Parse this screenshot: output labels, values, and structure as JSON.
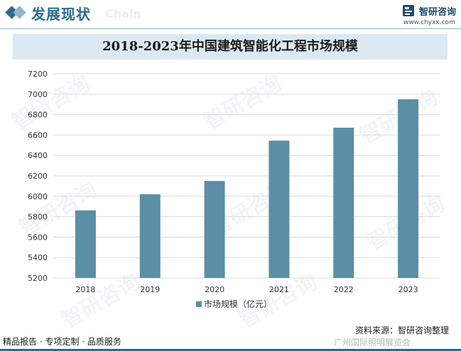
{
  "header": {
    "section_title": "发展现状",
    "section_title_en": "Chain",
    "logo_name": "智研咨询",
    "logo_url": "www.chyxx.com"
  },
  "footer": {
    "left": "精品报告 · 专项定制 · 品质服务",
    "source": "资料来源：智研咨询整理",
    "weibo_mark": "广州国际照明展览会"
  },
  "watermark_text": "智研咨询",
  "colors": {
    "bar": "#5b8fa6",
    "accent": "#2e6a8a"
  },
  "chart_data": {
    "type": "bar",
    "title": "2018-2023年中国建筑智能化工程市场规模",
    "categories": [
      "2018",
      "2019",
      "2020",
      "2021",
      "2022",
      "2023"
    ],
    "series": [
      {
        "name": "市场规模（亿元）",
        "values": [
          5862,
          6020,
          6150,
          6545,
          6672,
          6950
        ]
      }
    ],
    "ylim": [
      5200,
      7200
    ],
    "yticks": [
      5200,
      5400,
      5600,
      5800,
      6000,
      6200,
      6400,
      6600,
      6800,
      7000,
      7200
    ],
    "grid": true,
    "legend": "bottom"
  }
}
